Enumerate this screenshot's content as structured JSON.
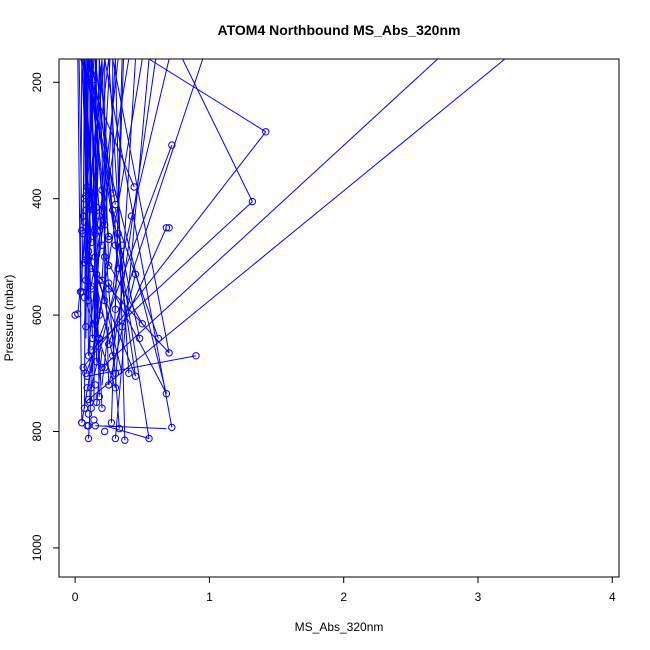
{
  "chart_data": {
    "type": "scatter",
    "title": "ATOM4 Northbound MS_Abs_320nm",
    "xlabel": "MS_Abs_320nm",
    "ylabel": "Pressure (mbar)",
    "xlim": [
      -0.12,
      4.05
    ],
    "ylim": [
      1050,
      160
    ],
    "y_reversed": true,
    "x_ticks": [
      0,
      1,
      2,
      3,
      4
    ],
    "y_ticks": [
      200,
      400,
      600,
      800,
      1000
    ],
    "grid": false,
    "legend": "none",
    "colors": {
      "series": "#0000ff",
      "axis": "#000000"
    },
    "series": [
      {
        "x": [
          0.05,
          0.33,
          0.1,
          0.3,
          0.07,
          0.27,
          0.15,
          0.72,
          0.3,
          0.18,
          0.1,
          0.55,
          0.2,
          0.37,
          0.08,
          0.45,
          0.09,
          0.25,
          0.12,
          0.68,
          0.06,
          0.4,
          0.2,
          0.16,
          0.02,
          0.12,
          0.28,
          0.1,
          0.17,
          0.25,
          0.13,
          0.7,
          0.08,
          0.35,
          0.14,
          0.18,
          0.3,
          0.1,
          0.22,
          0.05,
          0.9,
          0.12,
          0.32,
          0.08,
          0.2,
          0.7,
          0.15,
          0.48,
          0.25,
          0.1,
          0.07,
          0.62,
          0.2,
          0.3,
          0.12,
          0.5,
          0.15,
          0.08,
          0.25,
          0.18,
          0.06,
          0.1,
          0.0,
          0.14,
          0.07,
          0.22,
          0.05,
          0.04,
          0.12,
          0.16,
          0.3,
          0.08,
          0.1,
          0.28,
          0.35,
          0.2,
          0.09,
          0.18,
          0.06,
          0.12,
          0.25,
          0.15,
          0.07,
          0.44,
          0.1,
          0.28,
          0.22,
          0.32,
          0.12,
          0.18,
          0.07,
          0.45,
          0.25,
          0.1,
          0.68,
          0.16,
          0.08,
          0.25,
          0.12,
          0.18,
          0.22,
          0.15,
          0.09,
          0.3,
          0.12,
          0.1,
          0.42,
          1.32,
          0.14,
          0.12,
          0.08,
          0.72,
          1.42,
          0.11,
          0.16,
          0.22,
          0.09,
          0.05,
          0.14,
          0.1
        ],
        "y": [
          785,
          795,
          812,
          812,
          760,
          785,
          790,
          793,
          725,
          740,
          745,
          812,
          760,
          815,
          700,
          705,
          705,
          720,
          725,
          735,
          690,
          700,
          690,
          680,
          598,
          660,
          670,
          670,
          640,
          650,
          640,
          665,
          620,
          620,
          615,
          600,
          590,
          575,
          575,
          560,
          670,
          550,
          520,
          540,
          540,
          450,
          500,
          640,
          515,
          505,
          510,
          640,
          480,
          480,
          475,
          615,
          460,
          450,
          465,
          455,
          460,
          455,
          600,
          420,
          440,
          445,
          455,
          560,
          410,
          415,
          410,
          395,
          400,
          390,
          480,
          385,
          380,
          430,
          430,
          390,
          470,
          450,
          400,
          380,
          500,
          420,
          500,
          460,
          520,
          540,
          570,
          530,
          545,
          490,
          450,
          530,
          505,
          555,
          555,
          640,
          690,
          720,
          725,
          700,
          760,
          790,
          430,
          405,
          195,
          185,
          420,
          308,
          285,
          750,
          750,
          800,
          790,
          785,
          780,
          770
        ]
      }
    ],
    "segments": [
      [
        [
          0.05,
          785
        ],
        [
          0.5,
          160
        ]
      ],
      [
        [
          0.33,
          795
        ],
        [
          0.12,
          160
        ]
      ],
      [
        [
          0.1,
          812
        ],
        [
          0.26,
          160
        ]
      ],
      [
        [
          0.3,
          812
        ],
        [
          0.55,
          160
        ]
      ],
      [
        [
          0.07,
          760
        ],
        [
          0.08,
          160
        ]
      ],
      [
        [
          0.27,
          785
        ],
        [
          0.36,
          160
        ]
      ],
      [
        [
          0.15,
          790
        ],
        [
          0.68,
          795
        ]
      ],
      [
        [
          0.72,
          793
        ],
        [
          0.22,
          160
        ]
      ],
      [
        [
          0.3,
          725
        ],
        [
          0.45,
          160
        ]
      ],
      [
        [
          0.18,
          740
        ],
        [
          0.12,
          160
        ]
      ],
      [
        [
          0.1,
          745
        ],
        [
          3.2,
          160
        ]
      ],
      [
        [
          0.55,
          812
        ],
        [
          0.1,
          160
        ]
      ],
      [
        [
          0.2,
          760
        ],
        [
          0.07,
          160
        ]
      ],
      [
        [
          0.37,
          815
        ],
        [
          0.3,
          160
        ]
      ],
      [
        [
          0.08,
          700
        ],
        [
          0.72,
          308
        ]
      ],
      [
        [
          0.45,
          705
        ],
        [
          0.1,
          160
        ]
      ],
      [
        [
          0.09,
          705
        ],
        [
          0.9,
          670
        ]
      ],
      [
        [
          0.25,
          720
        ],
        [
          0.18,
          160
        ]
      ],
      [
        [
          0.12,
          725
        ],
        [
          0.7,
          160
        ]
      ],
      [
        [
          0.68,
          735
        ],
        [
          0.05,
          160
        ]
      ],
      [
        [
          0.06,
          690
        ],
        [
          1.42,
          285
        ]
      ],
      [
        [
          0.4,
          700
        ],
        [
          0.25,
          160
        ]
      ],
      [
        [
          0.2,
          690
        ],
        [
          2.7,
          160
        ]
      ],
      [
        [
          0.16,
          680
        ],
        [
          0.12,
          160
        ]
      ],
      [
        [
          0.02,
          598
        ],
        [
          0.2,
          160
        ]
      ],
      [
        [
          0.12,
          660
        ],
        [
          1.32,
          405
        ]
      ],
      [
        [
          0.28,
          670
        ],
        [
          0.6,
          160
        ]
      ],
      [
        [
          0.1,
          670
        ],
        [
          0.08,
          160
        ]
      ],
      [
        [
          0.17,
          640
        ],
        [
          0.15,
          160
        ]
      ],
      [
        [
          0.25,
          650
        ],
        [
          0.95,
          160
        ]
      ],
      [
        [
          0.13,
          640
        ],
        [
          0.05,
          160
        ]
      ],
      [
        [
          0.7,
          665
        ],
        [
          0.28,
          160
        ]
      ],
      [
        [
          0.08,
          620
        ],
        [
          0.1,
          160
        ]
      ],
      [
        [
          0.35,
          620
        ],
        [
          0.68,
          450
        ]
      ],
      [
        [
          0.14,
          615
        ],
        [
          0.18,
          160
        ]
      ],
      [
        [
          0.18,
          600
        ],
        [
          0.07,
          160
        ]
      ],
      [
        [
          0.3,
          590
        ],
        [
          0.35,
          160
        ]
      ],
      [
        [
          0.1,
          575
        ],
        [
          0.12,
          160
        ]
      ],
      [
        [
          0.22,
          575
        ],
        [
          0.22,
          160
        ]
      ],
      [
        [
          0.05,
          560
        ],
        [
          0.08,
          160
        ]
      ],
      [
        [
          0.12,
          550
        ],
        [
          0.4,
          160
        ]
      ],
      [
        [
          0.32,
          520
        ],
        [
          0.15,
          160
        ]
      ],
      [
        [
          0.08,
          540
        ],
        [
          0.1,
          160
        ]
      ],
      [
        [
          0.2,
          540
        ],
        [
          0.3,
          160
        ]
      ],
      [
        [
          0.15,
          500
        ],
        [
          0.06,
          160
        ]
      ],
      [
        [
          0.25,
          515
        ],
        [
          0.2,
          160
        ]
      ],
      [
        [
          0.1,
          505
        ],
        [
          0.13,
          160
        ]
      ],
      [
        [
          0.07,
          510
        ],
        [
          0.25,
          160
        ]
      ],
      [
        [
          0.2,
          480
        ],
        [
          0.09,
          160
        ]
      ],
      [
        [
          0.3,
          480
        ],
        [
          0.18,
          160
        ]
      ],
      [
        [
          0.12,
          475
        ],
        [
          0.05,
          160
        ]
      ],
      [
        [
          0.15,
          460
        ],
        [
          0.15,
          160
        ]
      ],
      [
        [
          0.08,
          450
        ],
        [
          0.22,
          160
        ]
      ],
      [
        [
          0.25,
          465
        ],
        [
          0.1,
          160
        ]
      ],
      [
        [
          0.18,
          455
        ],
        [
          0.32,
          160
        ]
      ],
      [
        [
          0.12,
          410
        ],
        [
          0.08,
          160
        ]
      ],
      [
        [
          0.16,
          415
        ],
        [
          0.2,
          160
        ]
      ],
      [
        [
          0.3,
          410
        ],
        [
          0.12,
          160
        ]
      ],
      [
        [
          0.08,
          395
        ],
        [
          0.14,
          160
        ]
      ],
      [
        [
          0.1,
          400
        ],
        [
          0.06,
          160
        ]
      ],
      [
        [
          0.28,
          390
        ],
        [
          0.28,
          160
        ]
      ],
      [
        [
          0.2,
          385
        ],
        [
          0.1,
          160
        ]
      ],
      [
        [
          0.09,
          380
        ],
        [
          0.16,
          160
        ]
      ],
      [
        [
          0.44,
          380
        ],
        [
          0.04,
          160
        ]
      ],
      [
        [
          0.1,
          500
        ],
        [
          0.45,
          705
        ]
      ],
      [
        [
          0.28,
          420
        ],
        [
          0.62,
          640
        ]
      ],
      [
        [
          0.22,
          500
        ],
        [
          0.5,
          615
        ]
      ],
      [
        [
          0.32,
          460
        ],
        [
          0.48,
          640
        ]
      ],
      [
        [
          0.12,
          520
        ],
        [
          0.7,
          665
        ]
      ],
      [
        [
          0.18,
          540
        ],
        [
          0.35,
          700
        ]
      ],
      [
        [
          0.07,
          570
        ],
        [
          0.3,
          725
        ]
      ],
      [
        [
          0.45,
          530
        ],
        [
          0.25,
          720
        ]
      ],
      [
        [
          0.25,
          545
        ],
        [
          0.68,
          735
        ]
      ],
      [
        [
          0.1,
          490
        ],
        [
          0.28,
          670
        ]
      ],
      [
        [
          1.32,
          405
        ],
        [
          0.8,
          160
        ]
      ],
      [
        [
          1.42,
          285
        ],
        [
          0.55,
          160
        ]
      ],
      [
        [
          0.05,
          440
        ],
        [
          0.03,
          160
        ]
      ],
      [
        [
          0.04,
          560
        ],
        [
          0.05,
          160
        ]
      ],
      [
        [
          0.06,
          455
        ],
        [
          0.07,
          160
        ]
      ],
      [
        [
          0.08,
          640
        ],
        [
          0.09,
          160
        ]
      ],
      [
        [
          0.11,
          750
        ],
        [
          0.11,
          160
        ]
      ],
      [
        [
          0.14,
          750
        ],
        [
          0.16,
          160
        ]
      ],
      [
        [
          0.05,
          780
        ],
        [
          0.02,
          160
        ]
      ],
      [
        [
          0.22,
          790
        ],
        [
          0.55,
          812
        ]
      ],
      [
        [
          0.16,
          755
        ],
        [
          0.2,
          660
        ]
      ],
      [
        [
          0.12,
          700
        ],
        [
          0.16,
          600
        ]
      ],
      [
        [
          0.2,
          720
        ],
        [
          0.25,
          620
        ]
      ],
      [
        [
          0.1,
          665
        ],
        [
          0.14,
          560
        ]
      ],
      [
        [
          0.15,
          640
        ],
        [
          0.22,
          540
        ]
      ],
      [
        [
          0.07,
          615
        ],
        [
          0.1,
          520
        ]
      ],
      [
        [
          0.13,
          590
        ],
        [
          0.18,
          480
        ]
      ],
      [
        [
          0.09,
          545
        ],
        [
          0.12,
          460
        ]
      ],
      [
        [
          0.18,
          500
        ],
        [
          0.22,
          420
        ]
      ],
      [
        [
          0.05,
          520
        ],
        [
          0.08,
          440
        ]
      ],
      [
        [
          0.28,
          560
        ],
        [
          0.32,
          480
        ]
      ],
      [
        [
          0.14,
          480
        ],
        [
          0.2,
          400
        ]
      ]
    ]
  }
}
